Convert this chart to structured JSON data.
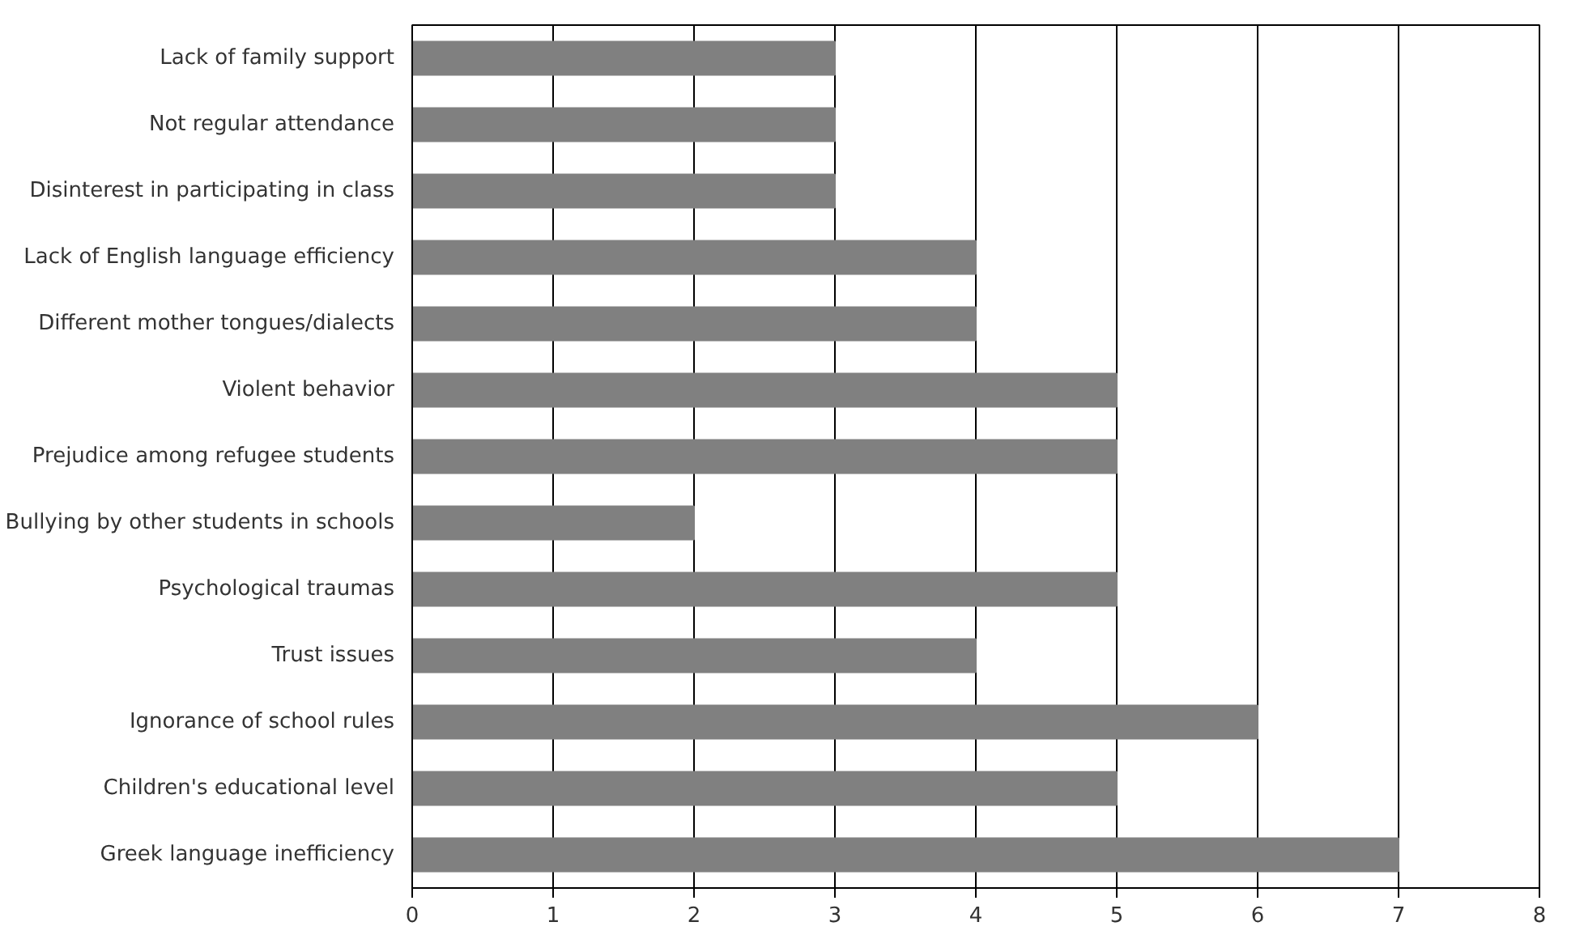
{
  "chart_data": {
    "type": "bar",
    "orientation": "horizontal",
    "categories": [
      "Lack of family support",
      "Not regular attendance",
      "Disinterest in participating in class",
      "Lack of English language efficiency",
      "Different mother tongues/dialects",
      "Violent behavior",
      "Prejudice among refugee students",
      "Bullying by other students in schools",
      "Psychological traumas",
      "Trust issues",
      "Ignorance of school rules",
      "Children's educational level",
      "Greek language inefficiency"
    ],
    "values": [
      3,
      3,
      3,
      4,
      4,
      5,
      5,
      2,
      5,
      4,
      6,
      5,
      7
    ],
    "color": "#808080",
    "xlim": [
      0,
      8
    ],
    "xticks": [
      0,
      1,
      2,
      3,
      4,
      5,
      6,
      7,
      8
    ],
    "grid": "x"
  }
}
